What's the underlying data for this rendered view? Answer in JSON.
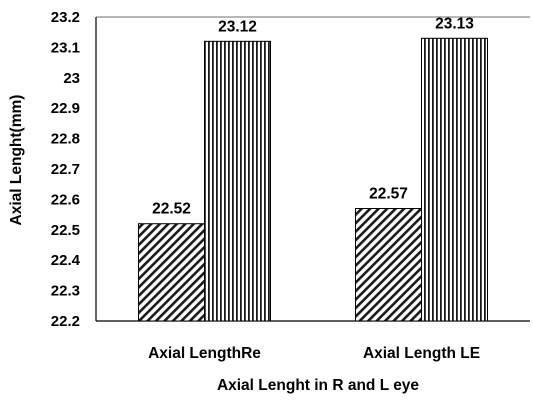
{
  "chart_data": {
    "type": "bar",
    "title": "",
    "xlabel": "Axial Lenght in R and L eye",
    "ylabel": "Axial Lenght(mm)",
    "ylim": [
      22.2,
      23.2
    ],
    "yticks": [
      "22.2",
      "22.3",
      "22.4",
      "22.5",
      "22.6",
      "22.7",
      "22.8",
      "22.9",
      "23",
      "23.1",
      "23.2"
    ],
    "categories": [
      "Axial LengthRe",
      "Axial Length LE"
    ],
    "series": [
      {
        "values": [
          22.52,
          22.57
        ],
        "labels": [
          "22.52",
          "22.57"
        ],
        "pattern": "diagonal-hatch"
      },
      {
        "values": [
          23.12,
          23.13
        ],
        "labels": [
          "23.12",
          "23.13"
        ],
        "pattern": "vertical-hatch"
      }
    ],
    "grid": false,
    "legend": "none"
  }
}
